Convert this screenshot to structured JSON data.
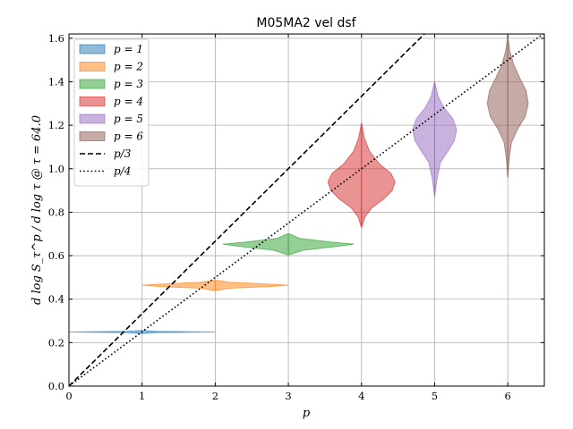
{
  "chart_data": {
    "type": "violin",
    "title": "M05MA2 vel dsf",
    "xlabel": "p",
    "ylabel": "d log S_τ^p / d log τ @ τ = 64.0",
    "xlim": [
      0,
      6.5
    ],
    "ylim": [
      0,
      1.62
    ],
    "xticks": [
      0,
      1,
      2,
      3,
      4,
      5,
      6
    ],
    "yticks": [
      0.0,
      0.2,
      0.4,
      0.6,
      0.8,
      1.0,
      1.2,
      1.4,
      1.6
    ],
    "xtick_labels": [
      "0",
      "1",
      "2",
      "3",
      "4",
      "5",
      "6"
    ],
    "ytick_labels": [
      "0.0",
      "0.2",
      "0.4",
      "0.6",
      "0.8",
      "1.0",
      "1.2",
      "1.4",
      "1.6"
    ],
    "grid": true,
    "legend_position": "top-left",
    "violins": [
      {
        "label": "p = 1",
        "p": 1,
        "color": "#1f77b4",
        "median": 0.249,
        "min": 0.242,
        "max": 0.256,
        "profile": [
          [
            0.242,
            0.02
          ],
          [
            0.246,
            0.2
          ],
          [
            0.249,
            1.0
          ],
          [
            0.252,
            0.2
          ],
          [
            0.256,
            0.02
          ]
        ]
      },
      {
        "label": "p = 2",
        "p": 2,
        "color": "#ff7f0e",
        "median": 0.463,
        "min": 0.44,
        "max": 0.486,
        "profile": [
          [
            0.44,
            0.02
          ],
          [
            0.45,
            0.2
          ],
          [
            0.458,
            0.75
          ],
          [
            0.464,
            1.0
          ],
          [
            0.47,
            0.7
          ],
          [
            0.478,
            0.2
          ],
          [
            0.486,
            0.02
          ]
        ]
      },
      {
        "label": "p = 3",
        "p": 3,
        "color": "#2ca02c",
        "median": 0.653,
        "min": 0.605,
        "max": 0.7,
        "profile": [
          [
            0.605,
            0.02
          ],
          [
            0.625,
            0.2
          ],
          [
            0.642,
            0.65
          ],
          [
            0.653,
            0.9
          ],
          [
            0.662,
            0.6
          ],
          [
            0.68,
            0.15
          ],
          [
            0.7,
            0.02
          ]
        ]
      },
      {
        "label": "p = 4",
        "p": 4,
        "color": "#d62728",
        "median": 0.95,
        "min": 0.73,
        "max": 1.21,
        "profile": [
          [
            0.73,
            0.0
          ],
          [
            0.78,
            0.05
          ],
          [
            0.82,
            0.14
          ],
          [
            0.86,
            0.3
          ],
          [
            0.9,
            0.42
          ],
          [
            0.94,
            0.46
          ],
          [
            0.98,
            0.4
          ],
          [
            1.02,
            0.25
          ],
          [
            1.08,
            0.11
          ],
          [
            1.14,
            0.04
          ],
          [
            1.21,
            0.0
          ]
        ]
      },
      {
        "label": "p = 5",
        "p": 5,
        "color": "#9467bd",
        "median": 1.2,
        "min": 0.87,
        "max": 1.4,
        "profile": [
          [
            0.87,
            0.0
          ],
          [
            0.95,
            0.03
          ],
          [
            1.03,
            0.08
          ],
          [
            1.08,
            0.18
          ],
          [
            1.13,
            0.27
          ],
          [
            1.18,
            0.3
          ],
          [
            1.23,
            0.25
          ],
          [
            1.28,
            0.13
          ],
          [
            1.33,
            0.05
          ],
          [
            1.4,
            0.0
          ]
        ]
      },
      {
        "label": "p = 6",
        "p": 6,
        "color": "#8c564b",
        "median": 1.33,
        "min": 0.96,
        "max": 1.61,
        "profile": [
          [
            0.96,
            0.0
          ],
          [
            1.05,
            0.02
          ],
          [
            1.12,
            0.05
          ],
          [
            1.18,
            0.13
          ],
          [
            1.24,
            0.24
          ],
          [
            1.3,
            0.28
          ],
          [
            1.36,
            0.25
          ],
          [
            1.42,
            0.16
          ],
          [
            1.48,
            0.08
          ],
          [
            1.54,
            0.03
          ],
          [
            1.61,
            0.0
          ]
        ]
      }
    ],
    "reference_lines": [
      {
        "label": "p/3",
        "style": "dashed",
        "color": "#000000",
        "slope": 0.3333333
      },
      {
        "label": "p/4",
        "style": "dotted",
        "color": "#000000",
        "slope": 0.25
      }
    ]
  }
}
